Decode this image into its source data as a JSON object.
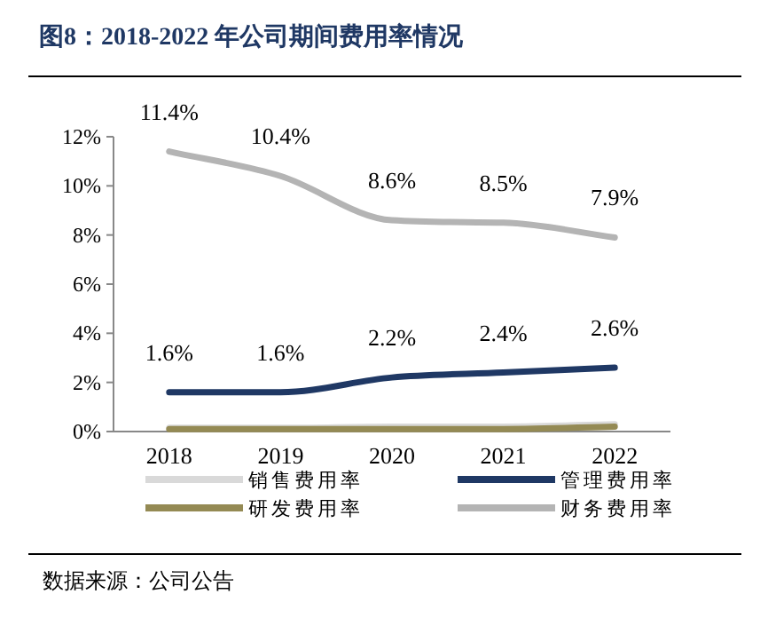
{
  "chart_data": {
    "type": "line",
    "title": "图8：2018-2022 年公司期间费用率情况",
    "annotations": [
      "数据来源：公司公告"
    ],
    "categories": [
      "2018",
      "2019",
      "2020",
      "2021",
      "2022"
    ],
    "ylim": [
      0,
      12
    ],
    "yticks": [
      {
        "value": 0,
        "label": "0%"
      },
      {
        "value": 2,
        "label": "2%"
      },
      {
        "value": 4,
        "label": "4%"
      },
      {
        "value": 6,
        "label": "6%"
      },
      {
        "value": 8,
        "label": "8%"
      },
      {
        "value": 10,
        "label": "10%"
      },
      {
        "value": 12,
        "label": "12%"
      }
    ],
    "grid": false,
    "legend": "bottom",
    "marker": "none",
    "line_style": "solid",
    "series": [
      {
        "name": "销售费用率",
        "color": "#d9d9d9",
        "values": [
          0.15,
          0.15,
          0.2,
          0.2,
          0.3
        ]
      },
      {
        "name": "管理费用率",
        "color": "#1f3864",
        "values": [
          1.6,
          1.6,
          2.2,
          2.4,
          2.6
        ],
        "value_labels": [
          "1.6%",
          "1.6%",
          "2.2%",
          "2.4%",
          "2.6%"
        ]
      },
      {
        "name": "研发费用率",
        "color": "#948a54",
        "values": [
          0.1,
          0.1,
          0.1,
          0.1,
          0.2
        ]
      },
      {
        "name": "财务费用率",
        "color": "#b4b4b4",
        "values": [
          11.4,
          10.4,
          8.6,
          8.5,
          7.9
        ],
        "value_labels": [
          "11.4%",
          "10.4%",
          "8.6%",
          "8.5%",
          "7.9%"
        ]
      }
    ]
  }
}
